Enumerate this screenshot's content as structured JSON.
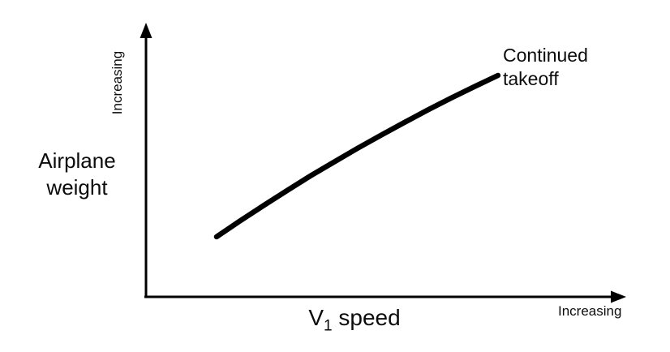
{
  "chart_data": {
    "type": "line",
    "title": "",
    "xlabel": "V1 speed",
    "xlabel_parts": {
      "base": "V",
      "sub": "1",
      "rest": " speed"
    },
    "ylabel": "Airplane weight",
    "ylabel_lines": [
      "Airplane",
      "weight"
    ],
    "x_axis_annotation": "Increasing",
    "y_axis_annotation": "Increasing",
    "x_range": [
      0,
      1
    ],
    "y_range": [
      0,
      1
    ],
    "grid": false,
    "legend_position": "inline-annotation",
    "colors": {
      "line": "#000000",
      "axis": "#000000",
      "text": "#0c0c0c",
      "background": "#ffffff"
    },
    "line_width": 6.5,
    "series": [
      {
        "name": "Continued takeoff",
        "label_lines": [
          "Continued",
          "takeoff"
        ],
        "x": [
          0.147,
          0.196,
          0.245,
          0.294,
          0.342,
          0.391,
          0.44,
          0.489,
          0.538,
          0.587,
          0.635,
          0.684,
          0.733
        ],
        "y": [
          0.22,
          0.278,
          0.334,
          0.389,
          0.442,
          0.493,
          0.543,
          0.591,
          0.638,
          0.684,
          0.727,
          0.769,
          0.81
        ]
      }
    ]
  }
}
